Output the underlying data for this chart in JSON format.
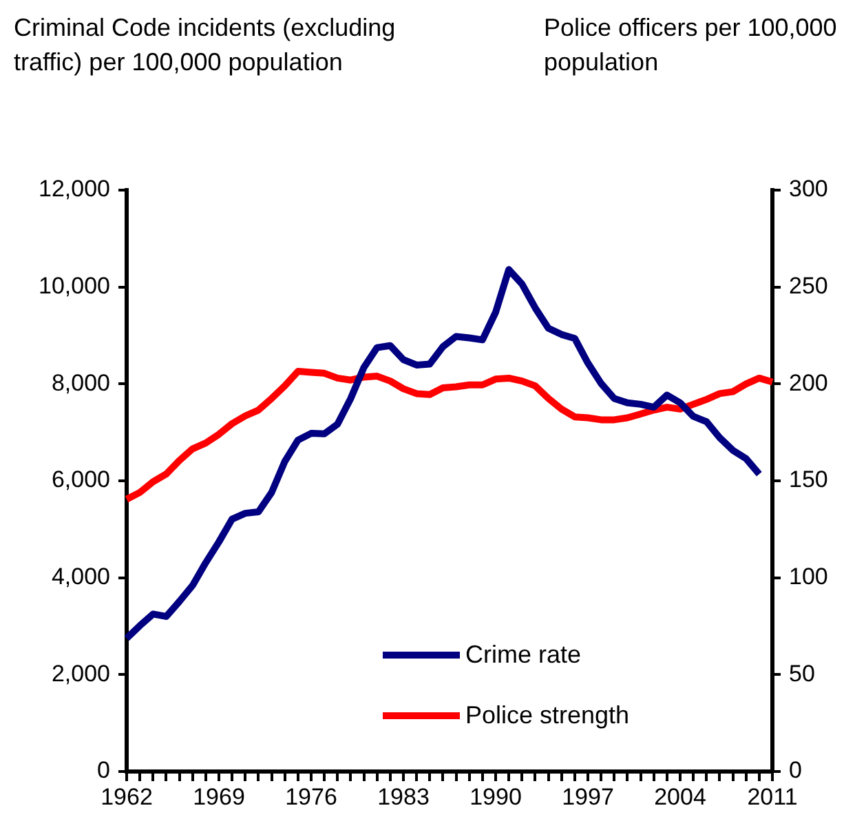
{
  "chart_data": {
    "type": "line",
    "ylabel": "Criminal Code incidents (excluding traffic) per 100,000 population",
    "y2label": "Police officers per 100,000 population",
    "categories": [
      "1962",
      null,
      null,
      null,
      null,
      null,
      null,
      "1969",
      null,
      null,
      null,
      null,
      null,
      null,
      "1976",
      null,
      null,
      null,
      null,
      null,
      null,
      "1983",
      null,
      null,
      null,
      null,
      null,
      null,
      "1990",
      null,
      null,
      null,
      null,
      null,
      null,
      "1997",
      null,
      null,
      null,
      null,
      null,
      null,
      "2004",
      null,
      null,
      null,
      null,
      null,
      null,
      "2011"
    ],
    "series": [
      {
        "name": "Crime rate",
        "color": "#000080",
        "values": [
          2750,
          3010,
          3250,
          3200,
          3510,
          3840,
          4310,
          4740,
          5210,
          5330,
          5360,
          5760,
          6400,
          6840,
          6980,
          6970,
          7170,
          7700,
          8340,
          8750,
          8790,
          8500,
          8390,
          8410,
          8770,
          8980,
          8950,
          8910,
          9480,
          10360,
          10060,
          9570,
          9150,
          9020,
          8940,
          8430,
          8010,
          7700,
          7610,
          7580,
          7520,
          7770,
          7610,
          7330,
          7220,
          6890,
          6630,
          6460,
          6140,
          null
        ]
      },
      {
        "name": "Police strength",
        "color": "#ff0000",
        "axis": "y2",
        "values": [
          140.5,
          144,
          149.5,
          153.5,
          160.5,
          166.5,
          169.5,
          174,
          179.5,
          183.5,
          186.5,
          192.5,
          199,
          206.5,
          206,
          205.5,
          203,
          202,
          203.5,
          204,
          201.5,
          197.5,
          195,
          194.5,
          198,
          198.5,
          199.5,
          199.5,
          202.5,
          203,
          201.5,
          199,
          192.5,
          187,
          183,
          182.5,
          181.5,
          181.5,
          182.5,
          184.5,
          186.5,
          188,
          187,
          189.5,
          192,
          195,
          196,
          200,
          203,
          201
        ]
      }
    ],
    "ylim": [
      0,
      12000
    ],
    "yticks": [
      {
        "value": 0,
        "label": "0"
      },
      {
        "value": 2000,
        "label": "2,000"
      },
      {
        "value": 4000,
        "label": "4,000"
      },
      {
        "value": 6000,
        "label": "6,000"
      },
      {
        "value": 8000,
        "label": "8,000"
      },
      {
        "value": 10000,
        "label": "10,000"
      },
      {
        "value": 12000,
        "label": "12,000"
      }
    ],
    "y2lim": [
      0,
      300
    ],
    "y2ticks": [
      0,
      50,
      100,
      150,
      200,
      250,
      300
    ],
    "grid": false,
    "legend": "bottom",
    "marker": "none",
    "line_style": "solid"
  }
}
